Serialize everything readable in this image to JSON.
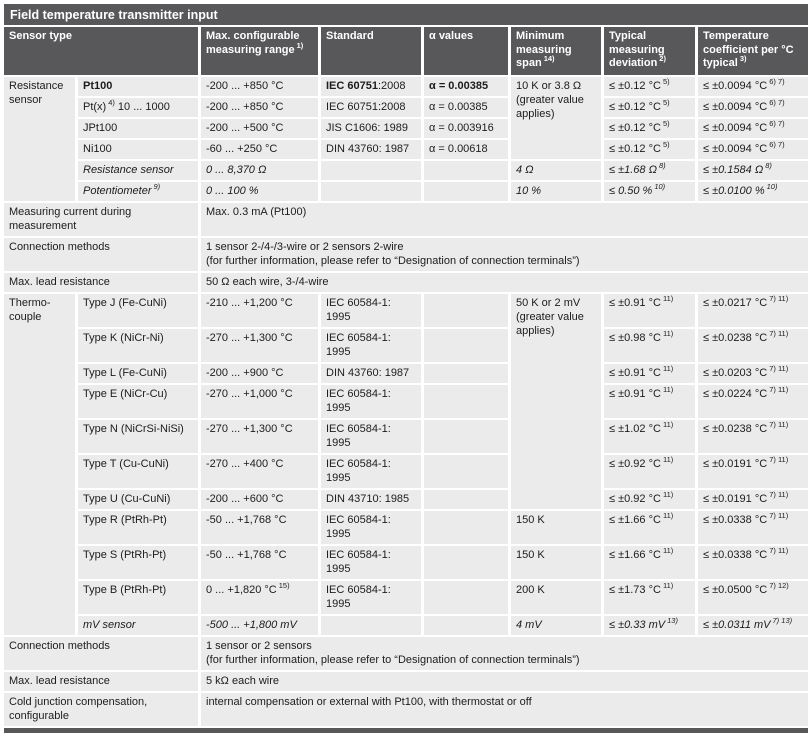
{
  "title": "Field temperature transmitter input",
  "colors": {
    "header_gray": "#58585b",
    "cell_gray": "#ebebeb"
  },
  "columns": {
    "sensor_type": "Sensor type",
    "range": "Max. configurable measuring range",
    "range_sup": "1)",
    "standard": "Standard",
    "alpha": "α values",
    "span": "Minimum measuring span",
    "span_sup": "14)",
    "deviation": "Typical measuring deviation",
    "deviation_sup": "2)",
    "coeff": "Temperature coefficient per °C typical",
    "coeff_sup": "3)"
  },
  "resistance": {
    "group": "Resistance sensor",
    "min_span_shared": "10 K or 3.8 Ω (greater value applies)",
    "rows": [
      {
        "name": "Pt100",
        "range": "-200 ... +850 °C",
        "std_bold": "IEC 60751",
        "std": ":2008",
        "alpha": "α = 0.00385",
        "dev": "≤ ±0.12 °C",
        "dev_sup": "5)",
        "coeff": "≤ ±0.0094 °C",
        "coeff_sup": "6) 7)"
      },
      {
        "name": "Pt(x)",
        "name_sup": "4)",
        "name_post": "10 ... 1000",
        "range": "-200 ... +850 °C",
        "std": "IEC 60751:2008",
        "alpha": "α = 0.00385",
        "dev": "≤ ±0.12 °C",
        "dev_sup": "5)",
        "coeff": "≤ ±0.0094 °C",
        "coeff_sup": "6) 7)"
      },
      {
        "name": "JPt100",
        "range": "-200 ... +500 °C",
        "std": "JIS C1606: 1989",
        "alpha": "α = 0.003916",
        "dev": "≤ ±0.12 °C",
        "dev_sup": "5)",
        "coeff": "≤ ±0.0094 °C",
        "coeff_sup": "6) 7)"
      },
      {
        "name": "Ni100",
        "range": "-60 ... +250 °C",
        "std": "DIN 43760: 1987",
        "alpha": "α = 0.00618",
        "dev": "≤ ±0.12 °C",
        "dev_sup": "5)",
        "coeff": "≤ ±0.0094 °C",
        "coeff_sup": "6) 7)"
      },
      {
        "name": "Resistance sensor",
        "range": "0 ... 8,370 Ω",
        "span": "4 Ω",
        "dev": "≤ ±1.68 Ω",
        "dev_sup": "8)",
        "coeff": "≤ ±0.1584 Ω",
        "coeff_sup": "8)"
      },
      {
        "name": "Potentiometer",
        "name_sup": "9)",
        "range": "0 ... 100 %",
        "span": "10 %",
        "dev": "≤ 0.50 %",
        "dev_sup": "10)",
        "coeff": "≤ ±0.0100 %",
        "coeff_sup": "10)"
      }
    ]
  },
  "info1": {
    "label": "Measuring current during measurement",
    "value": "Max. 0.3 mA (Pt100)"
  },
  "info2": {
    "label": "Connection methods",
    "value1": "1 sensor 2-/4-/3-wire or 2 sensors 2-wire",
    "value2": "(for further information, please refer to “Designation of connection terminals”)"
  },
  "info3": {
    "label": "Max. lead resistance",
    "value": "50 Ω each wire, 3-/4-wire"
  },
  "thermocouple": {
    "group": "Thermo-couple",
    "min_span_shared": "50 K or 2 mV (greater value applies)",
    "rows": [
      {
        "name": "Type J (Fe-CuNi)",
        "range": "-210 ... +1,200 °C",
        "std": "IEC 60584-1: 1995",
        "dev": "≤ ±0.91 °C",
        "dev_sup": "11)",
        "coeff": "≤ ±0.0217 °C",
        "coeff_sup": "7) 11)"
      },
      {
        "name": "Type K (NiCr-Ni)",
        "range": "-270 ... +1,300 °C",
        "std": "IEC 60584-1: 1995",
        "dev": "≤ ±0.98 °C",
        "dev_sup": "11)",
        "coeff": "≤ ±0.0238 °C",
        "coeff_sup": "7) 11)"
      },
      {
        "name": "Type L (Fe-CuNi)",
        "range": "-200 ... +900 °C",
        "std": "DIN 43760: 1987",
        "dev": "≤ ±0.91 °C",
        "dev_sup": "11)",
        "coeff": "≤ ±0.0203 °C",
        "coeff_sup": "7) 11)"
      },
      {
        "name": "Type E (NiCr-Cu)",
        "range": "-270 ... +1,000 °C",
        "std": "IEC 60584-1: 1995",
        "dev": "≤ ±0.91 °C",
        "dev_sup": "11)",
        "coeff": "≤ ±0.0224 °C",
        "coeff_sup": "7) 11)"
      },
      {
        "name": "Type N (NiCrSi-NiSi)",
        "range": "-270 ... +1,300 °C",
        "std": "IEC 60584-1: 1995",
        "dev": "≤ ±1.02 °C",
        "dev_sup": "11)",
        "coeff": "≤ ±0.0238 °C",
        "coeff_sup": "7) 11)"
      },
      {
        "name": "Type T (Cu-CuNi)",
        "range": "-270 ... +400 °C",
        "std": "IEC 60584-1: 1995",
        "dev": "≤ ±0.92 °C",
        "dev_sup": "11)",
        "coeff": "≤ ±0.0191 °C",
        "coeff_sup": "7) 11)"
      },
      {
        "name": "Type U (Cu-CuNi)",
        "range": "-200 ... +600 °C",
        "std": "DIN 43710: 1985",
        "dev": "≤ ±0.92 °C",
        "dev_sup": "11)",
        "coeff": "≤ ±0.0191 °C",
        "coeff_sup": "7) 11)"
      },
      {
        "name": "Type R (PtRh-Pt)",
        "range": "-50 ... +1,768 °C",
        "std": "IEC 60584-1: 1995",
        "span": "150 K",
        "dev": "≤ ±1.66 °C",
        "dev_sup": "11)",
        "coeff": "≤ ±0.0338 °C",
        "coeff_sup": "7) 11)"
      },
      {
        "name": "Type S (PtRh-Pt)",
        "range": "-50 ... +1,768 °C",
        "std": "IEC 60584-1: 1995",
        "span": "150 K",
        "dev": "≤ ±1.66 °C",
        "dev_sup": "11)",
        "coeff": "≤ ±0.0338 °C",
        "coeff_sup": "7) 11)"
      },
      {
        "name": "Type B (PtRh-Pt)",
        "range": "0 ... +1,820 °C",
        "range_sup": "15)",
        "std": "IEC 60584-1: 1995",
        "span": "200 K",
        "dev": "≤ ±1.73 °C",
        "dev_sup": "11)",
        "coeff": "≤ ±0.0500 °C",
        "coeff_sup": "7) 12)"
      },
      {
        "name": "mV sensor",
        "range": "-500 ... +1,800 mV",
        "span": "4 mV",
        "dev": "≤ ±0.33 mV",
        "dev_sup": "13)",
        "coeff": "≤ ±0.0311 mV",
        "coeff_sup": "7) 13)"
      }
    ]
  },
  "info4": {
    "label": "Connection methods",
    "value1": "1 sensor or 2 sensors",
    "value2": "(for further information, please refer to “Designation of connection terminals”)"
  },
  "info5": {
    "label": "Max. lead resistance",
    "value": "5 kΩ each wire"
  },
  "info6": {
    "label": "Cold junction compensation, configurable",
    "value": "internal compensation or external with Pt100, with thermostat or off"
  }
}
